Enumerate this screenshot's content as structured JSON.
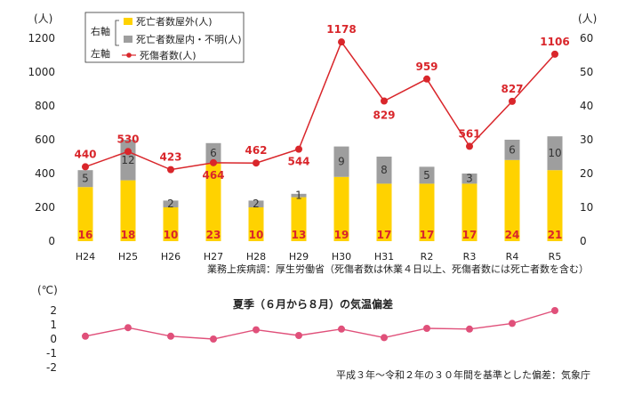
{
  "chart_data": [
    {
      "type": "bar",
      "categories": [
        "H24",
        "H25",
        "H26",
        "H27",
        "H28",
        "H29",
        "H30",
        "H31",
        "R2",
        "R3",
        "R4",
        "R5"
      ],
      "left_axis": {
        "unit": "(人)",
        "ticks": [
          "0",
          "200",
          "400",
          "600",
          "800",
          "1000",
          "1200"
        ],
        "ylim": [
          0,
          1200
        ]
      },
      "right_axis": {
        "unit": "(人)",
        "ticks": [
          "0",
          "10",
          "20",
          "30",
          "40",
          "50",
          "60"
        ],
        "ylim": [
          0,
          60
        ]
      },
      "legend": {
        "right_label": "右軸",
        "left_label": "左軸",
        "items": [
          {
            "key": "outdoor",
            "label": "死亡者数屋外(人)",
            "color": "#ffd200"
          },
          {
            "key": "indoor",
            "label": "死亡者数屋内・不明(人)",
            "color": "#9e9e9e"
          },
          {
            "key": "casualties",
            "label": "死傷者数(人)",
            "color": "#d9262b"
          }
        ]
      },
      "series": [
        {
          "name": "死亡者数屋外(人)",
          "axis": "right",
          "values": [
            16,
            18,
            10,
            23,
            10,
            13,
            19,
            17,
            17,
            17,
            24,
            21
          ]
        },
        {
          "name": "死亡者数屋内・不明(人)",
          "axis": "right",
          "values": [
            5,
            12,
            2,
            6,
            2,
            1,
            9,
            8,
            5,
            3,
            6,
            10
          ]
        },
        {
          "name": "死傷者数(人)",
          "axis": "left",
          "values": [
            440,
            530,
            423,
            464,
            462,
            544,
            1178,
            829,
            959,
            561,
            827,
            1106
          ]
        }
      ],
      "source_note": "業務上疾病調：厚生労働省（死傷者数は休業４日以上、死傷者数には死亡者数を含む）"
    },
    {
      "type": "line",
      "title": "夏季（６月から８月）の気温偏差",
      "unit": "(℃)",
      "yticks": [
        "2",
        "1",
        "0",
        "-1",
        "-2"
      ],
      "ylim": [
        -2,
        2
      ],
      "values": [
        0.2,
        0.8,
        0.2,
        0.0,
        0.65,
        0.25,
        0.7,
        0.1,
        0.75,
        0.7,
        1.1,
        2.0
      ],
      "color": "#e0507a",
      "source_note": "平成３年〜令和２年の３０年間を基準とした偏差：気象庁"
    }
  ]
}
